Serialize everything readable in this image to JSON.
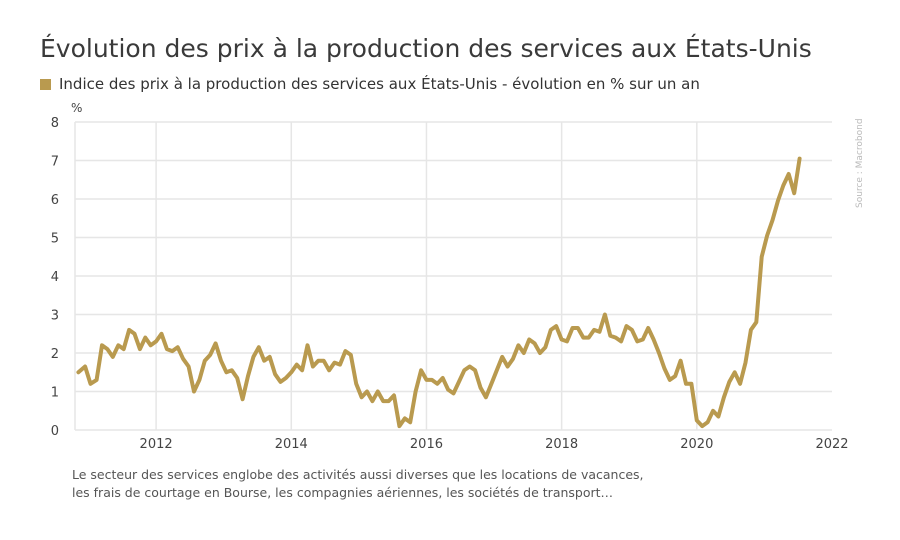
{
  "chart_data": {
    "type": "line",
    "title": "Évolution des prix à la production des services aux États-Unis",
    "ylabel": "%",
    "xlabel": "",
    "ylim": [
      0,
      8
    ],
    "xlim": [
      2010.8,
      2022
    ],
    "yticks": [
      0,
      1,
      2,
      3,
      4,
      5,
      6,
      7,
      8
    ],
    "xticks": [
      2012,
      2014,
      2016,
      2018,
      2020,
      2022
    ],
    "grid": true,
    "legend_position": "top-left",
    "source": "Source : Macrobond",
    "series": [
      {
        "name": "Indice des prix à la production des services aux États-Unis - évolution en % sur un an",
        "color": "#b99a4f",
        "points": [
          [
            2010.85,
            1.5
          ],
          [
            2010.95,
            1.65
          ],
          [
            2011.03,
            1.2
          ],
          [
            2011.12,
            1.3
          ],
          [
            2011.2,
            2.2
          ],
          [
            2011.28,
            2.1
          ],
          [
            2011.36,
            1.9
          ],
          [
            2011.44,
            2.2
          ],
          [
            2011.52,
            2.1
          ],
          [
            2011.6,
            2.6
          ],
          [
            2011.68,
            2.5
          ],
          [
            2011.76,
            2.1
          ],
          [
            2011.84,
            2.4
          ],
          [
            2011.92,
            2.2
          ],
          [
            2012.0,
            2.3
          ],
          [
            2012.08,
            2.5
          ],
          [
            2012.16,
            2.1
          ],
          [
            2012.24,
            2.05
          ],
          [
            2012.32,
            2.15
          ],
          [
            2012.4,
            1.85
          ],
          [
            2012.48,
            1.65
          ],
          [
            2012.56,
            1.0
          ],
          [
            2012.64,
            1.3
          ],
          [
            2012.72,
            1.8
          ],
          [
            2012.8,
            1.95
          ],
          [
            2012.88,
            2.25
          ],
          [
            2012.96,
            1.8
          ],
          [
            2013.04,
            1.5
          ],
          [
            2013.12,
            1.55
          ],
          [
            2013.2,
            1.35
          ],
          [
            2013.28,
            0.8
          ],
          [
            2013.36,
            1.4
          ],
          [
            2013.44,
            1.9
          ],
          [
            2013.52,
            2.15
          ],
          [
            2013.6,
            1.8
          ],
          [
            2013.68,
            1.9
          ],
          [
            2013.76,
            1.45
          ],
          [
            2013.84,
            1.25
          ],
          [
            2013.92,
            1.35
          ],
          [
            2014.0,
            1.5
          ],
          [
            2014.08,
            1.7
          ],
          [
            2014.16,
            1.55
          ],
          [
            2014.24,
            2.2
          ],
          [
            2014.32,
            1.65
          ],
          [
            2014.4,
            1.8
          ],
          [
            2014.48,
            1.8
          ],
          [
            2014.56,
            1.55
          ],
          [
            2014.64,
            1.75
          ],
          [
            2014.72,
            1.7
          ],
          [
            2014.8,
            2.05
          ],
          [
            2014.88,
            1.95
          ],
          [
            2014.96,
            1.2
          ],
          [
            2015.04,
            0.85
          ],
          [
            2015.12,
            1.0
          ],
          [
            2015.2,
            0.75
          ],
          [
            2015.28,
            1.0
          ],
          [
            2015.36,
            0.75
          ],
          [
            2015.44,
            0.75
          ],
          [
            2015.52,
            0.9
          ],
          [
            2015.6,
            0.1
          ],
          [
            2015.68,
            0.3
          ],
          [
            2015.76,
            0.2
          ],
          [
            2015.84,
            1.0
          ],
          [
            2015.92,
            1.55
          ],
          [
            2016.0,
            1.3
          ],
          [
            2016.08,
            1.3
          ],
          [
            2016.16,
            1.2
          ],
          [
            2016.24,
            1.35
          ],
          [
            2016.32,
            1.05
          ],
          [
            2016.4,
            0.95
          ],
          [
            2016.48,
            1.25
          ],
          [
            2016.56,
            1.55
          ],
          [
            2016.64,
            1.65
          ],
          [
            2016.72,
            1.55
          ],
          [
            2016.8,
            1.1
          ],
          [
            2016.88,
            0.85
          ],
          [
            2016.96,
            1.2
          ],
          [
            2017.04,
            1.55
          ],
          [
            2017.12,
            1.9
          ],
          [
            2017.2,
            1.65
          ],
          [
            2017.28,
            1.85
          ],
          [
            2017.36,
            2.2
          ],
          [
            2017.44,
            2.0
          ],
          [
            2017.52,
            2.35
          ],
          [
            2017.6,
            2.25
          ],
          [
            2017.68,
            2.0
          ],
          [
            2017.76,
            2.15
          ],
          [
            2017.84,
            2.6
          ],
          [
            2017.92,
            2.7
          ],
          [
            2018.0,
            2.35
          ],
          [
            2018.08,
            2.3
          ],
          [
            2018.16,
            2.65
          ],
          [
            2018.24,
            2.65
          ],
          [
            2018.32,
            2.4
          ],
          [
            2018.4,
            2.4
          ],
          [
            2018.48,
            2.6
          ],
          [
            2018.56,
            2.55
          ],
          [
            2018.64,
            3.0
          ],
          [
            2018.72,
            2.45
          ],
          [
            2018.8,
            2.4
          ],
          [
            2018.88,
            2.3
          ],
          [
            2018.96,
            2.7
          ],
          [
            2019.04,
            2.6
          ],
          [
            2019.12,
            2.3
          ],
          [
            2019.2,
            2.35
          ],
          [
            2019.28,
            2.65
          ],
          [
            2019.36,
            2.35
          ],
          [
            2019.44,
            2.0
          ],
          [
            2019.52,
            1.6
          ],
          [
            2019.6,
            1.3
          ],
          [
            2019.68,
            1.4
          ],
          [
            2019.76,
            1.8
          ],
          [
            2019.84,
            1.2
          ],
          [
            2019.92,
            1.2
          ],
          [
            2020.0,
            0.25
          ],
          [
            2020.08,
            0.1
          ],
          [
            2020.16,
            0.2
          ],
          [
            2020.24,
            0.5
          ],
          [
            2020.32,
            0.35
          ],
          [
            2020.4,
            0.85
          ],
          [
            2020.48,
            1.25
          ],
          [
            2020.56,
            1.5
          ],
          [
            2020.64,
            1.2
          ],
          [
            2020.72,
            1.75
          ],
          [
            2020.8,
            2.6
          ],
          [
            2020.88,
            2.8
          ],
          [
            2020.96,
            4.5
          ],
          [
            2021.04,
            5.05
          ],
          [
            2021.12,
            5.45
          ],
          [
            2021.2,
            5.95
          ],
          [
            2021.28,
            6.35
          ],
          [
            2021.36,
            6.65
          ],
          [
            2021.44,
            6.15
          ],
          [
            2021.52,
            7.05
          ]
        ]
      }
    ]
  },
  "footnote": {
    "line1": "Le secteur des services englobe des activités aussi diverses que les locations de vacances,",
    "line2": "les frais de courtage en Bourse, les compagnies aériennes, les sociétés de transport…"
  }
}
